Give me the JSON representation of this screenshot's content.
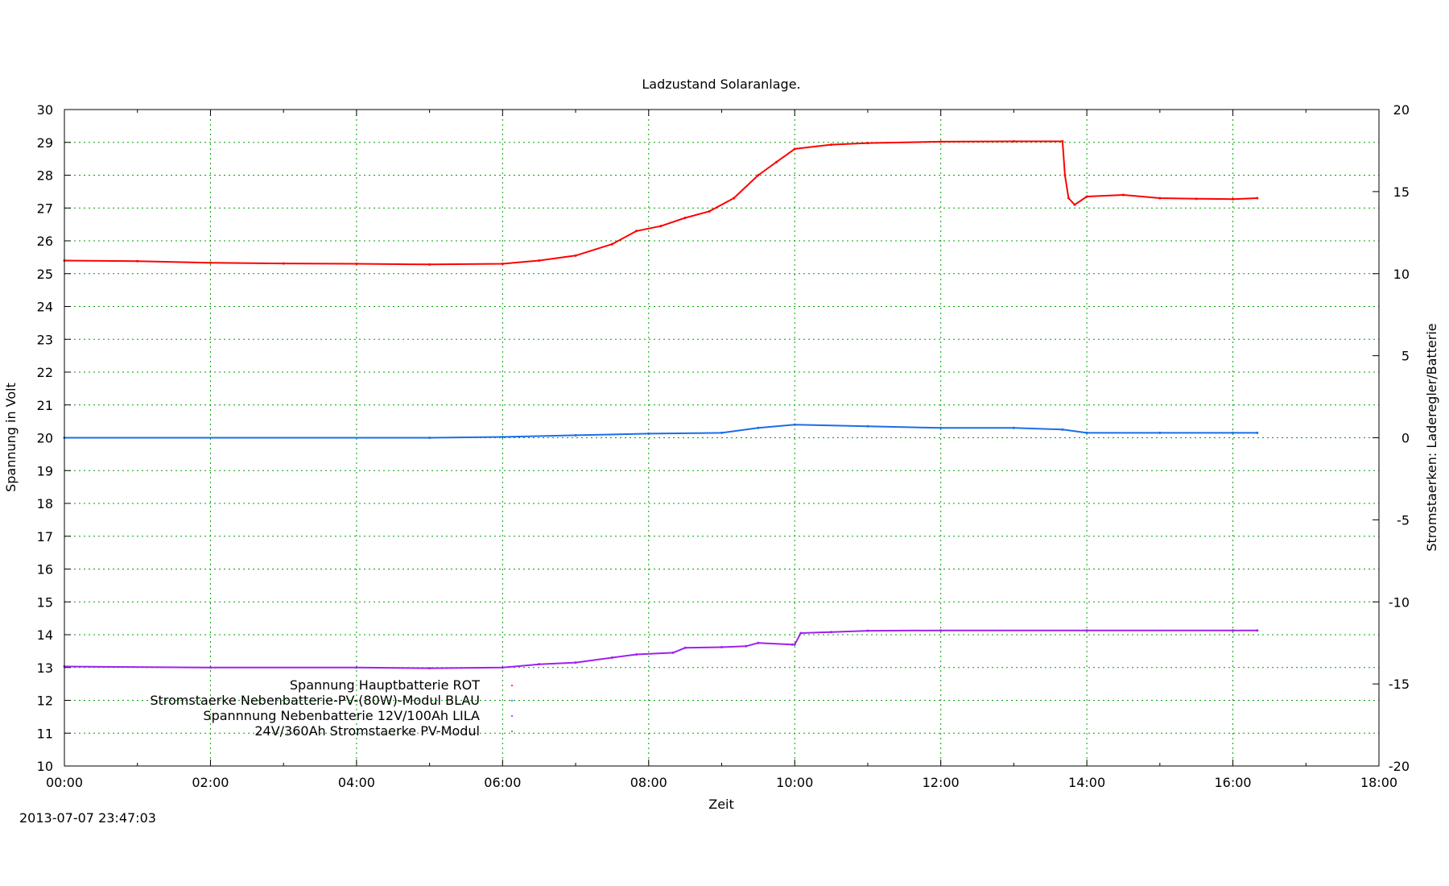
{
  "chart_data": {
    "type": "scatter",
    "title": "Ladzustand Solaranlage.",
    "xlabel": "Zeit",
    "ylabel": "Spannung in Volt",
    "y2label": "Stromstaerken: Laderegler/Batterie",
    "xlim_hours": [
      0,
      18
    ],
    "ylim": [
      10,
      30
    ],
    "y2lim": [
      -20,
      20
    ],
    "grid": true,
    "legend_position": "bottom-left",
    "x_ticks": [
      "00:00",
      "02:00",
      "04:00",
      "06:00",
      "08:00",
      "10:00",
      "12:00",
      "14:00",
      "16:00",
      "18:00"
    ],
    "y_ticks": [
      10,
      11,
      12,
      13,
      14,
      15,
      16,
      17,
      18,
      19,
      20,
      21,
      22,
      23,
      24,
      25,
      26,
      27,
      28,
      29,
      30
    ],
    "y2_ticks": [
      -20,
      -15,
      -10,
      -5,
      0,
      5,
      10,
      15,
      20
    ],
    "series": [
      {
        "name": "Spannung Hauptbatterie ROT",
        "axis": "y",
        "color": "#ff0000",
        "points": [
          [
            "00:00",
            25.4
          ],
          [
            "01:00",
            25.38
          ],
          [
            "02:00",
            25.33
          ],
          [
            "03:00",
            25.31
          ],
          [
            "04:00",
            25.3
          ],
          [
            "05:00",
            25.28
          ],
          [
            "06:00",
            25.3
          ],
          [
            "06:30",
            25.4
          ],
          [
            "07:00",
            25.55
          ],
          [
            "07:30",
            25.9
          ],
          [
            "07:50",
            26.3
          ],
          [
            "08:10",
            26.45
          ],
          [
            "08:30",
            26.7
          ],
          [
            "08:50",
            26.9
          ],
          [
            "09:10",
            27.3
          ],
          [
            "09:30",
            28.0
          ],
          [
            "09:45",
            28.4
          ],
          [
            "10:00",
            28.8
          ],
          [
            "10:30",
            28.93
          ],
          [
            "11:00",
            28.98
          ],
          [
            "12:00",
            29.02
          ],
          [
            "13:00",
            29.03
          ],
          [
            "13:40",
            29.03
          ],
          [
            "13:42",
            28.0
          ],
          [
            "13:45",
            27.3
          ],
          [
            "13:50",
            27.1
          ],
          [
            "14:00",
            27.35
          ],
          [
            "14:30",
            27.4
          ],
          [
            "15:00",
            27.3
          ],
          [
            "15:30",
            27.28
          ],
          [
            "16:00",
            27.27
          ],
          [
            "16:20",
            27.3
          ]
        ]
      },
      {
        "name": "Stromstaerke Nebenbatterie-PV-(80W)-Modul BLAU",
        "axis": "y2",
        "color": "#1a6ee8",
        "points": [
          [
            "00:00",
            0.0
          ],
          [
            "05:00",
            0.0
          ],
          [
            "06:00",
            0.05
          ],
          [
            "07:00",
            0.15
          ],
          [
            "08:00",
            0.25
          ],
          [
            "09:00",
            0.3
          ],
          [
            "09:30",
            0.6
          ],
          [
            "10:00",
            0.8
          ],
          [
            "11:00",
            0.7
          ],
          [
            "12:00",
            0.6
          ],
          [
            "13:00",
            0.6
          ],
          [
            "13:40",
            0.5
          ],
          [
            "14:00",
            0.3
          ],
          [
            "15:00",
            0.3
          ],
          [
            "16:00",
            0.3
          ],
          [
            "16:20",
            0.3
          ]
        ]
      },
      {
        "name": "Spannnung Nebenbatterie 12V/100Ah LILA",
        "axis": "y",
        "color": "#a020f0",
        "points": [
          [
            "00:00",
            13.03
          ],
          [
            "02:00",
            13.0
          ],
          [
            "04:00",
            13.0
          ],
          [
            "05:00",
            12.98
          ],
          [
            "06:00",
            13.0
          ],
          [
            "06:30",
            13.1
          ],
          [
            "07:00",
            13.15
          ],
          [
            "07:30",
            13.3
          ],
          [
            "07:50",
            13.4
          ],
          [
            "08:20",
            13.45
          ],
          [
            "08:30",
            13.6
          ],
          [
            "09:00",
            13.62
          ],
          [
            "09:20",
            13.65
          ],
          [
            "09:30",
            13.75
          ],
          [
            "09:58",
            13.7
          ],
          [
            "10:00",
            13.7
          ],
          [
            "10:05",
            14.05
          ],
          [
            "10:30",
            14.08
          ],
          [
            "11:00",
            14.12
          ],
          [
            "12:00",
            14.13
          ],
          [
            "14:00",
            14.13
          ],
          [
            "16:00",
            14.13
          ],
          [
            "16:20",
            14.13
          ]
        ]
      },
      {
        "name": "24V/360Ah Stromstaerke PV-Modul",
        "axis": "y2",
        "color": "#228b22",
        "points": []
      }
    ]
  },
  "footer": {
    "timestamp": "2013-07-07 23:47:03"
  }
}
